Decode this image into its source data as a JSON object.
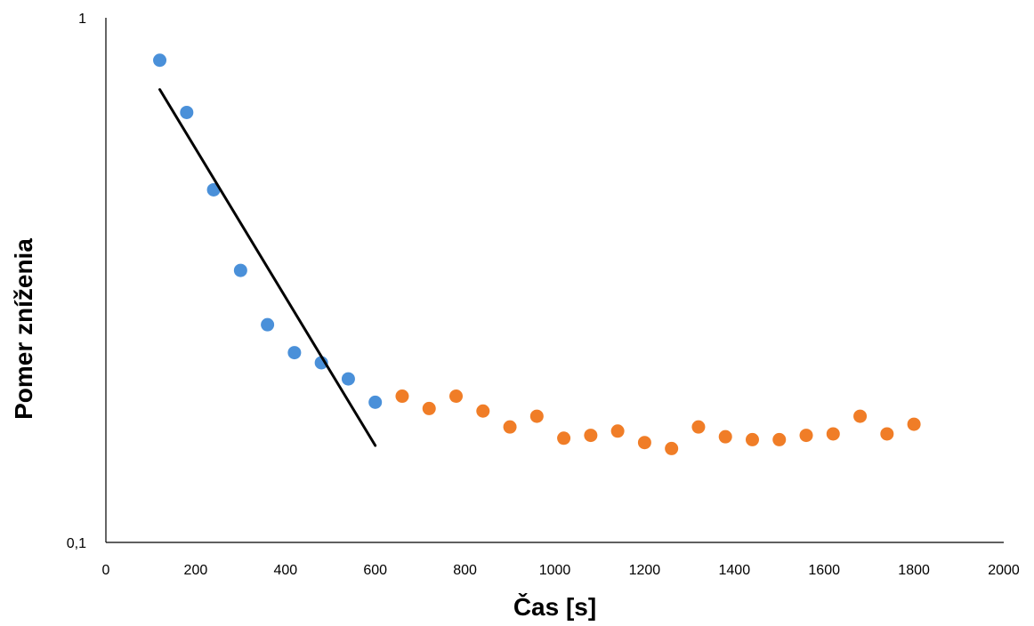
{
  "chart_data": {
    "type": "scatter",
    "title": "",
    "xlabel": "Čas [s]",
    "ylabel": "Pomer zníženia",
    "xlim": [
      0,
      2000
    ],
    "ylim": [
      0.1,
      1
    ],
    "y_scale": "log",
    "grid": false,
    "legend": "none",
    "x_ticks": [
      0,
      200,
      400,
      600,
      800,
      1000,
      1200,
      1400,
      1600,
      1800,
      2000
    ],
    "x_tick_labels": [
      "0",
      "200",
      "400",
      "600",
      "800",
      "1000",
      "1200",
      "1400",
      "1600",
      "1800",
      "2000"
    ],
    "y_ticks": [
      0.1,
      1
    ],
    "y_tick_labels": [
      "0,1",
      "1"
    ],
    "series": [
      {
        "color": "#4a90d9",
        "marker": "circle",
        "x": [
          120,
          180,
          240,
          300,
          360,
          420,
          480,
          540,
          600
        ],
        "y": [
          0.83,
          0.66,
          0.47,
          0.33,
          0.26,
          0.23,
          0.22,
          0.205,
          0.185
        ]
      },
      {
        "color": "#f07d27",
        "marker": "circle",
        "x": [
          660,
          720,
          780,
          840,
          900,
          960,
          1020,
          1080,
          1140,
          1200,
          1260,
          1320,
          1380,
          1440,
          1500,
          1560,
          1620,
          1680,
          1740,
          1800
        ],
        "y": [
          0.19,
          0.18,
          0.19,
          0.178,
          0.166,
          0.174,
          0.158,
          0.16,
          0.163,
          0.155,
          0.151,
          0.166,
          0.159,
          0.157,
          0.157,
          0.16,
          0.161,
          0.174,
          0.161,
          0.168
        ]
      },
      {
        "type": "line",
        "color": "#000000",
        "x": [
          120,
          600
        ],
        "y": [
          0.73,
          0.153
        ]
      }
    ]
  }
}
